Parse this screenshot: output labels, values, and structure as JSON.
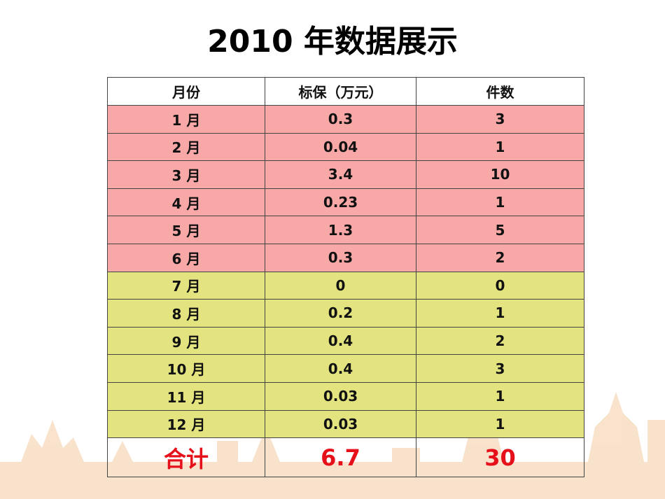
{
  "title": "2010 年数据展示",
  "table": {
    "header": [
      "月份",
      "标保（万元）",
      "件数"
    ],
    "rows": [
      [
        "1 月",
        "0.3",
        "3"
      ],
      [
        "2 月",
        "0.04",
        "1"
      ],
      [
        "3 月",
        "3.4",
        "10"
      ],
      [
        "4 月",
        "0.23",
        "1"
      ],
      [
        "5 月",
        "1.3",
        "5"
      ],
      [
        "6 月",
        "0.3",
        "2"
      ],
      [
        "7 月",
        "0",
        "0"
      ],
      [
        "8 月",
        "0.2",
        "1"
      ],
      [
        "9 月",
        "0.4",
        "2"
      ],
      [
        "10 月",
        "0.4",
        "3"
      ],
      [
        "11 月",
        "0.03",
        "1"
      ],
      [
        "12 月",
        "0.03",
        "1"
      ]
    ],
    "total": [
      "合计",
      "6.7",
      "30"
    ]
  }
}
